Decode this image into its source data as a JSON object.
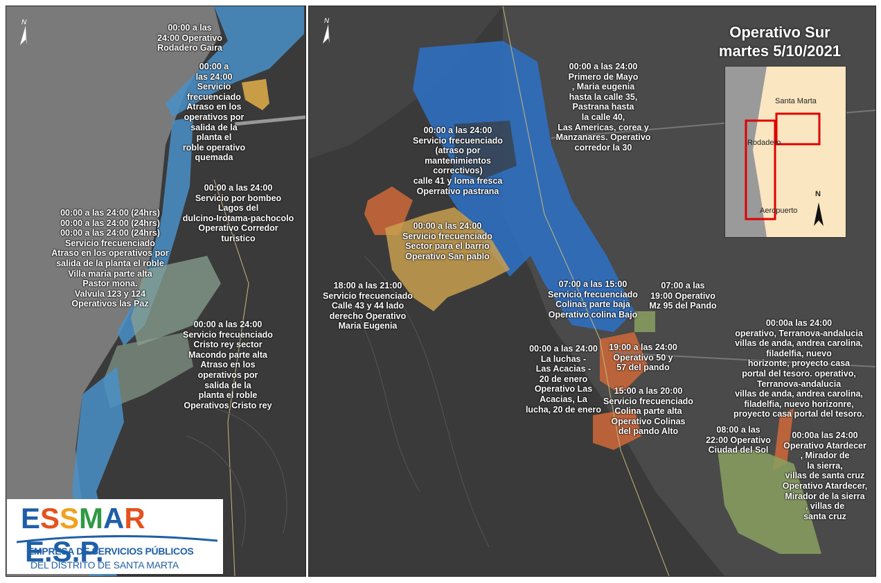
{
  "title": {
    "line1": "Operativo Sur",
    "line2": "martes 5/10/2021"
  },
  "north_symbol": "N",
  "inset_map": {
    "labels": {
      "santa_marta": "Santa Marta",
      "rodadero": "Rodadero",
      "aeropuerto": "Aeropuerto",
      "north": "N"
    }
  },
  "left_labels": {
    "rodadero_gaira": "00:00 a las\n24:00 Operativo\nRodadero Gaira",
    "quemada": "00:00 a\nlas 24:00\nServicio\nfrecuenciado\nAtraso en los\noperativos por\nsalida de la\nplanta el\nroble operativo\nquemada",
    "lagos": "00:00 a las 24:00\nServicio por bombeo\nLagos del\ndulcino-Irotama-pachocolo\nOperativo Corredor\nturistico",
    "las_paz": "00:00 a las 24:00 (24hrs)\n00:00 a las 24:00 (24hrs)\n00:00 a las 24:00 (24hrs)\nServicio frecuenciado\nAtraso en los operativos por\nsalida de la planta el roble\nVilla maria parte alta\nPastor mona.\nValvula 123 y 124\nOperativos las Paz",
    "cristo_rey": "00:00 a las 24:00\nServicio frecuenciado\nCristo rey sector\nMacondo parte alta\nAtraso en los\noperativos por\nsalida de la\nplanta el roble\nOperativos Cristo rey"
  },
  "right_labels": {
    "primero_mayo": "00:00 a las 24:00\nPrimero de Mayo\n, Maria eugenia\nhasta la calle 35,\nPastrana hasta\nla calle 40,\nLas Americas, corea y\nManzanares. Operativo\ncorredor la 30",
    "pastrana": "00:00 a las 24:00\nServicio frecuenciado\n(atraso por\nmantenimientos\ncorrectivos)\ncalle 41 y loma fresca\nOperrativo pastrana",
    "san_pablo": "00:00 a las 24:00\nServicio frecuenciado\nSector para el barrio\nOperativo San pablo",
    "maria_eugenia": "18:00 a las 21:00\nServicio frecuenciado\nCalle 43 y 44 lado\nderecho Operativo\nMaria Eugenia",
    "colina_bajo": "07:00 a las 15:00\nServicio frecuenciado\nColinas parte baja\nOperativo colina Bajo",
    "pando_95": "07:00 a las\n19:00 Operativo\nMz 95 del Pando",
    "terranova": "00:00a las 24:00\noperativo, Terranova-andalucia\nvillas de anda, andrea carolina,\nfiladelfia, nuevo\nhorizonte, proyecto casa\nportal del tesoro. operativo,\nTerranova-andalucia\nvillas de anda, andrea carolina,\nfiladelfia, nuevo horizonre,\nproyecto casa portal del tesoro.",
    "las_luchas": "00:00 a las 24:00\nLa luchas -\nLas Acacias -\n20 de enero\nOperativo Las\nAcacias, La\nlucha, 20 de enero",
    "pando_50": "19:00 a las 24:00\nOperativo 50 y\n57 del pando",
    "colinas_alto": "15:00 a las 20:00\nServicio frecuenciado\nColina parte alta\nOperativo Colinas\ndel pando Alto",
    "ciudad_sol": "08:00 a las\n22:00 Operativo\nCiudad del Sol",
    "atardecer": "00:00a las 24:00\nOperativo Atardecer\n, Mirador de\nla sierra,\nvillas de santa cruz\nOperativo Atardecer,\nMirador de la sierra\n, villas de\nsanta cruz"
  },
  "logo": {
    "letters": [
      "E",
      "S",
      "S",
      "M",
      "A",
      "R"
    ],
    "letter_colors": [
      "#1f5fa8",
      "#e5521f",
      "#f0a21e",
      "#2f9a43",
      "#1f5fa8",
      "#e5521f"
    ],
    "suffix": "E.S.P.",
    "line1": "EMPRESA DE SERVICIOS PÚBLICOS",
    "line2": "DEL DISTRITO DE SANTA MARTA"
  },
  "colors": {
    "background_land": "#3a3a3a",
    "sea": "#7a7a7a",
    "zone_blue": "#2f6fc0",
    "zone_lightblue": "#4a90c8",
    "zone_orange": "#c8663a",
    "zone_gold": "#c8a050",
    "zone_green": "#8aa060",
    "zone_yellow": "#d8a848",
    "inset_land": "#fbe6c2",
    "inset_frame": "#e00000"
  }
}
